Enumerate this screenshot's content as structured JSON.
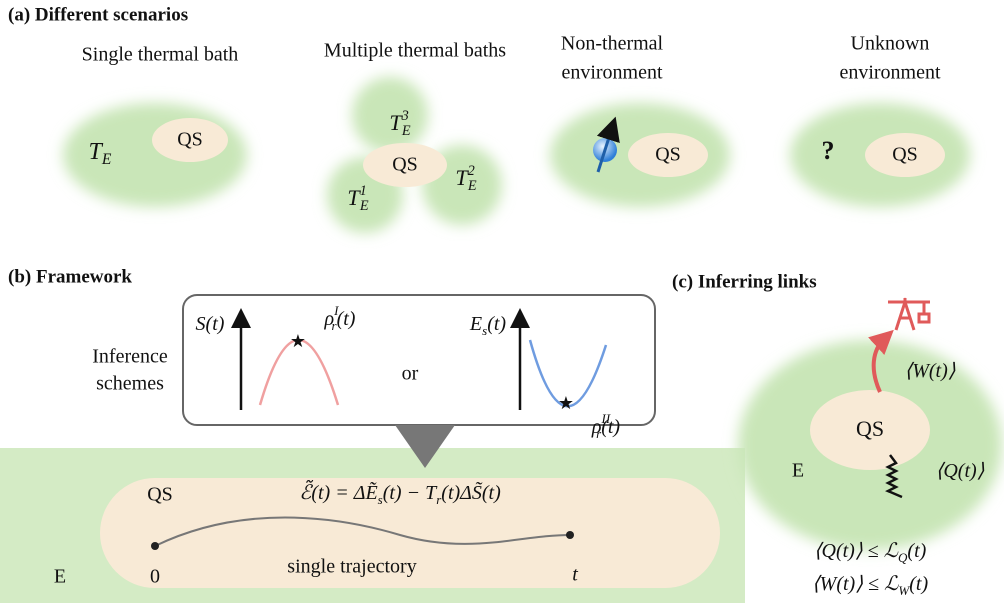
{
  "panel_a": {
    "title": "(a) Different scenarios",
    "scenarios": [
      {
        "label": [
          "Single thermal bath"
        ],
        "system": "QS",
        "env": [
          "T",
          {
            "sub": "E"
          }
        ]
      },
      {
        "label": [
          "Multiple thermal baths"
        ],
        "system": "QS",
        "baths": [
          [
            "T",
            {
              "sup": "3",
              "sub": "E"
            }
          ],
          [
            "T",
            {
              "sup": "1",
              "sub": "E"
            }
          ],
          [
            "T",
            {
              "sup": "2",
              "sub": "E"
            }
          ]
        ]
      },
      {
        "label": [
          "Non-thermal",
          "environment"
        ],
        "system": "QS"
      },
      {
        "label": [
          "Unknown",
          "environment"
        ],
        "system": "QS",
        "env": [
          "?"
        ]
      }
    ]
  },
  "panel_b": {
    "title": "(b) Framework",
    "schemes_label": [
      "Inference",
      "schemes"
    ],
    "scheme_1": {
      "axis": [
        "S(t)"
      ],
      "point": [
        "ρ",
        {
          "sup": "I",
          "sub": "r"
        },
        "(t)"
      ]
    },
    "connector": "or",
    "scheme_2": {
      "axis": [
        "E",
        {
          "sub": "s"
        },
        "(t)"
      ],
      "point": [
        "ρ",
        {
          "sup": "II",
          "sub": "r"
        },
        "(t)"
      ]
    },
    "system": "QS",
    "equation": [
      "ℰ̃(t) = ΔẼ",
      {
        "sub": "s"
      },
      "(t) − T",
      {
        "sub": "r"
      },
      "(t)ΔS̃(t)"
    ],
    "start": "0",
    "end": "t",
    "trajectory": "single trajectory",
    "environment": "E"
  },
  "panel_c": {
    "title": "(c) Inferring links",
    "system": "QS",
    "environment": "E",
    "work": [
      "⟨W(t)⟩"
    ],
    "heat": [
      "⟨Q(t)⟩"
    ],
    "bounds": [
      [
        "⟨Q(t)⟩ ≤ ℒ",
        {
          "sub": "Q"
        },
        "(t)"
      ],
      [
        "⟨W(t)⟩ ≤ ℒ",
        {
          "sub": "W"
        },
        "(t)"
      ]
    ]
  }
}
